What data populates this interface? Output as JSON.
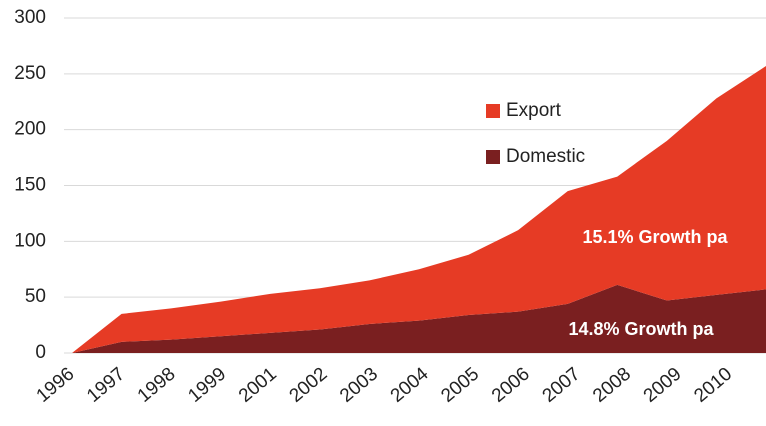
{
  "chart_data": {
    "type": "stacked_area",
    "categories": [
      "1996",
      "1997",
      "1998",
      "1999",
      "2001",
      "2002",
      "2003",
      "2004",
      "2005",
      "2006",
      "2007",
      "2008",
      "2009",
      "2010",
      null
    ],
    "series": [
      {
        "name": "Domestic",
        "color": "#7a1f20",
        "values": [
          0,
          10,
          12,
          15,
          18,
          21,
          26,
          29,
          34,
          37,
          44,
          61,
          47,
          52,
          57
        ]
      },
      {
        "name": "Export",
        "color": "#e63b25",
        "values": [
          0,
          25,
          28,
          31,
          35,
          37,
          39,
          46,
          54,
          73,
          101,
          97,
          143,
          176,
          200
        ]
      }
    ],
    "ylim": [
      0,
      300
    ],
    "yticks": [
      0,
      50,
      100,
      150,
      200,
      250,
      300
    ],
    "grid": true,
    "annotations": [
      "15.1% Growth pa",
      "14.8% Growth pa"
    ]
  }
}
